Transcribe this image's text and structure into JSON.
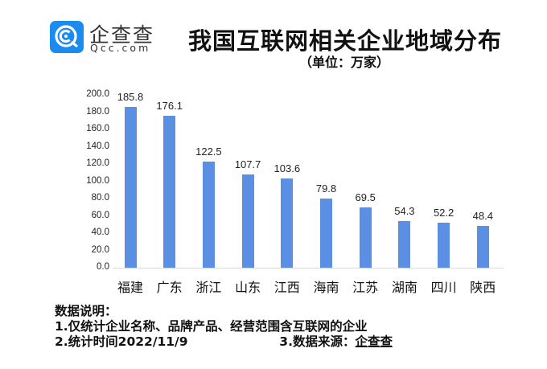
{
  "brand": {
    "name_cn": "企查查",
    "name_en": "Qcc.com",
    "logo_color": "#1a8cf0"
  },
  "header": {
    "title": "我国互联网相关企业地域分布",
    "subtitle": "（单位：万家）"
  },
  "notes": {
    "heading": "数据说明：",
    "line1": "1.仅统计企业名称、品牌产品、经营范围含互联网的企业",
    "line2_left": "2.统计时间2022/11/9",
    "line2_right_prefix": "3.数据来源：",
    "line2_right_source": "企查查"
  },
  "chart_data": {
    "type": "bar",
    "title": "我国互联网相关企业地域分布",
    "subtitle": "（单位：万家）",
    "xlabel": "",
    "ylabel": "万家",
    "categories": [
      "福建",
      "广东",
      "浙江",
      "山东",
      "江西",
      "海南",
      "江苏",
      "湖南",
      "四川",
      "陕西"
    ],
    "values": [
      185.8,
      176.1,
      122.5,
      107.7,
      103.6,
      79.8,
      69.5,
      54.3,
      52.2,
      48.4
    ],
    "value_labels": [
      "185.8",
      "176.1",
      "122.5",
      "107.7",
      "103.6",
      "79.8",
      "69.5",
      "54.3",
      "52.2",
      "48.4"
    ],
    "yticks": [
      "0.0",
      "20.0",
      "40.0",
      "60.0",
      "80.0",
      "100.0",
      "120.0",
      "140.0",
      "160.0",
      "180.0",
      "200.0"
    ],
    "ylim": [
      0,
      200
    ],
    "grid": false,
    "legend": "none",
    "bar_color": "#5b8fe3"
  }
}
